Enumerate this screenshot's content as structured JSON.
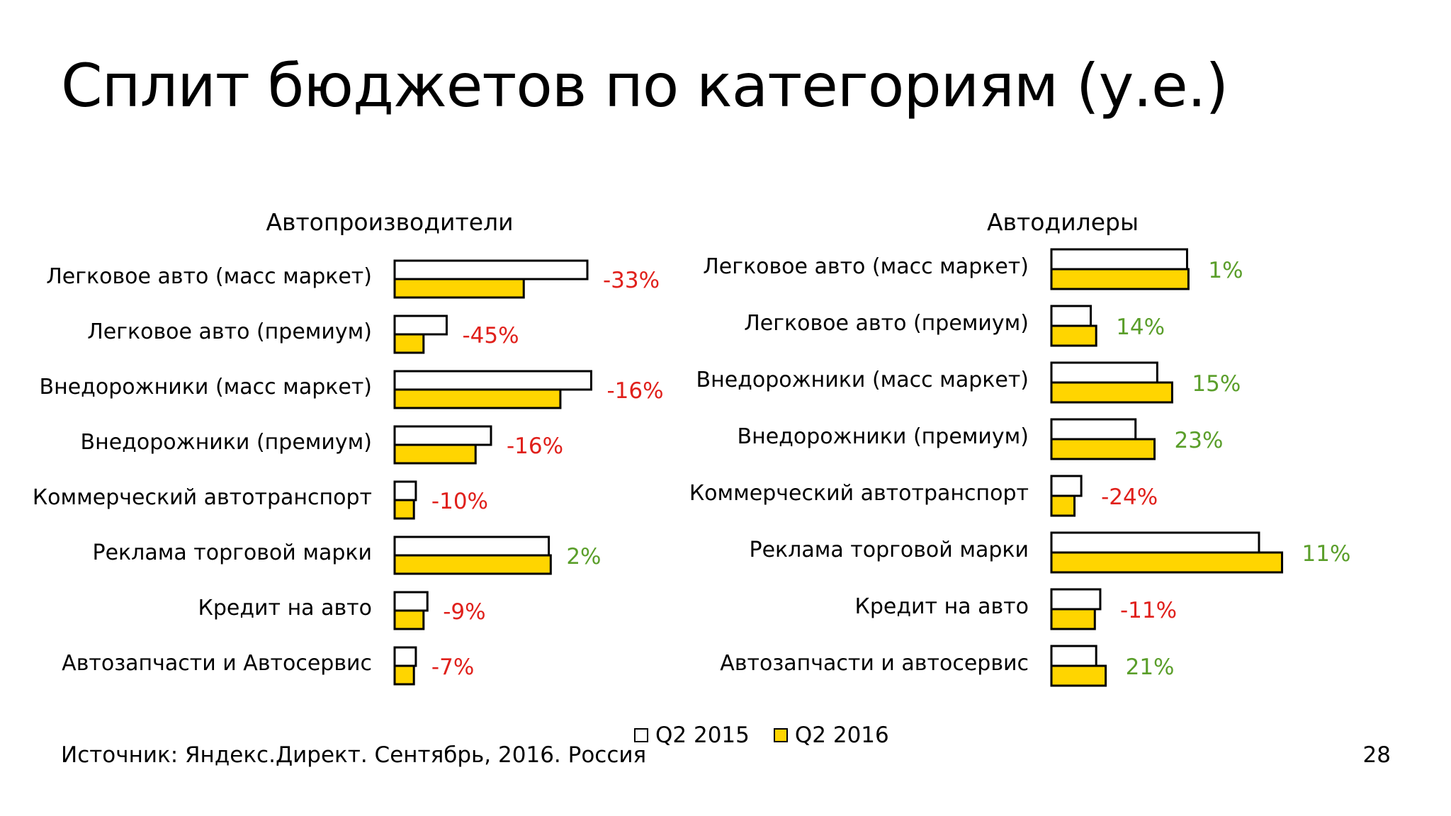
{
  "title": "Сплит бюджетов по категориям (у.е.)",
  "source": "Источник: Яндекс.Директ. Сентябрь, 2016. Россия",
  "page_number": "28",
  "legend": [
    {
      "label": "Q2 2015",
      "color": "#ffffff"
    },
    {
      "label": "Q2 2016",
      "color": "#ffd500"
    }
  ],
  "colors": {
    "negative": "#e0201b",
    "positive": "#5a9e2a",
    "bar_2016": "#ffd500",
    "bar_2015": "#ffffff",
    "outline": "#000000"
  },
  "chart_data": [
    {
      "type": "bar",
      "orientation": "horizontal",
      "title": "Автопроизводители",
      "categories": [
        "Легковое авто (масс маркет)",
        "Легковое авто (премиум)",
        "Внедорожники (масс маркет)",
        "Внедорожники (премиум)",
        "Коммерческий автотранспорт",
        "Реклама торговой марки",
        "Кредит на авто",
        "Автозапчасти и Автосервис"
      ],
      "series": [
        {
          "name": "Q2 2015",
          "values": [
            100,
            27,
            102,
            50,
            11,
            80,
            17,
            11
          ]
        },
        {
          "name": "Q2 2016",
          "values": [
            67,
            15,
            86,
            42,
            10,
            81,
            15,
            10
          ]
        }
      ],
      "labels": [
        "-33%",
        "-45%",
        "-16%",
        "-16%",
        "-10%",
        "2%",
        "-9%",
        "-7%"
      ],
      "xlim": [
        0,
        102
      ]
    },
    {
      "type": "bar",
      "orientation": "horizontal",
      "title": "Автодилеры",
      "categories": [
        "Легковое авто (масс маркет)",
        "Легковое авто (премиум)",
        "Внедорожники (масс маркет)",
        "Внедорожники (премиум)",
        "Коммерческий автотранспорт",
        "Реклама торговой марки",
        "Кредит на авто",
        "Автозапчасти и автосервис"
      ],
      "series": [
        {
          "name": "Q2 2015",
          "values": [
            100,
            29,
            78,
            62,
            22,
            153,
            36,
            33
          ]
        },
        {
          "name": "Q2 2016",
          "values": [
            101,
            33,
            89,
            76,
            17,
            170,
            32,
            40
          ]
        }
      ],
      "labels": [
        "1%",
        "14%",
        "15%",
        "23%",
        "-24%",
        "11%",
        "-11%",
        "21%"
      ],
      "xlim": [
        0,
        170
      ]
    }
  ]
}
